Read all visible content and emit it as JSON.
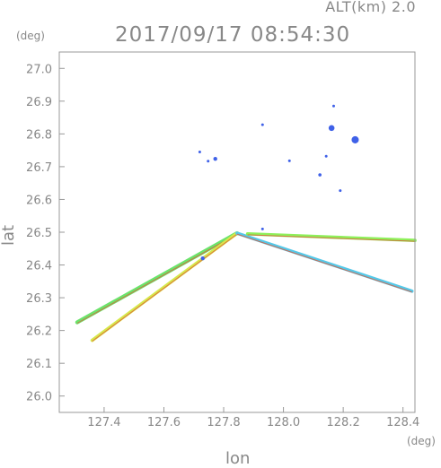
{
  "header": {
    "alt_label": "ALT(km)  2.0",
    "timestamp": "2017/09/17 08:54:30"
  },
  "chart_data": {
    "type": "scatter",
    "title": "2017/09/17 08:54:30",
    "subtitle": "ALT(km)  2.0",
    "xlabel": "lon",
    "ylabel": "lat",
    "x_unit": "(deg)",
    "y_unit": "(deg)",
    "xlim": [
      127.25,
      128.44
    ],
    "ylim": [
      25.95,
      27.05
    ],
    "x_ticks": [
      127.4,
      127.6,
      127.8,
      128.0,
      128.2,
      128.4
    ],
    "x_tick_labels": [
      "127.4",
      "127.6",
      "127.8",
      "128.0",
      "128.2",
      "128.4"
    ],
    "y_ticks": [
      26.0,
      26.1,
      26.2,
      26.3,
      26.4,
      26.5,
      26.6,
      26.7,
      26.8,
      26.9,
      27.0
    ],
    "y_tick_labels": [
      "26.0",
      "26.1",
      "26.2",
      "26.3",
      "26.4",
      "26.5",
      "26.6",
      "26.7",
      "26.8",
      "26.9",
      "27.0"
    ],
    "grid": false,
    "echo_beams": [
      {
        "from": [
          127.845,
          26.497
        ],
        "to": [
          127.31,
          26.225
        ],
        "color": "#6be36b",
        "width": 0.012
      },
      {
        "from": [
          127.845,
          26.497
        ],
        "to": [
          127.36,
          26.17
        ],
        "color": "#d6e84a",
        "width": 0.01
      },
      {
        "from": [
          127.845,
          26.497
        ],
        "to": [
          128.43,
          26.32
        ],
        "color": "#55c8e8",
        "width": 0.01
      },
      {
        "from": [
          127.88,
          26.495
        ],
        "to": [
          128.44,
          26.475
        ],
        "color": "#8ef05a",
        "width": 0.01
      }
    ],
    "echo_cells": [
      {
        "lon": 127.772,
        "lat": 26.724,
        "size": 0.006,
        "color": "#3f61e8"
      },
      {
        "lon": 127.748,
        "lat": 26.717,
        "size": 0.004,
        "color": "#3f61e8"
      },
      {
        "lon": 127.72,
        "lat": 26.745,
        "size": 0.003,
        "color": "#3f61e8"
      },
      {
        "lon": 127.93,
        "lat": 26.828,
        "size": 0.003,
        "color": "#3f61e8"
      },
      {
        "lon": 128.02,
        "lat": 26.718,
        "size": 0.002,
        "color": "#3f61e8"
      },
      {
        "lon": 128.161,
        "lat": 26.818,
        "size": 0.009,
        "color": "#3f61e8"
      },
      {
        "lon": 128.24,
        "lat": 26.782,
        "size": 0.011,
        "color": "#3f61e8"
      },
      {
        "lon": 128.143,
        "lat": 26.732,
        "size": 0.004,
        "color": "#3f61e8"
      },
      {
        "lon": 128.122,
        "lat": 26.675,
        "size": 0.005,
        "color": "#3f61e8"
      },
      {
        "lon": 128.19,
        "lat": 26.627,
        "size": 0.004,
        "color": "#3f61e8"
      },
      {
        "lon": 127.93,
        "lat": 26.51,
        "size": 0.003,
        "color": "#3f61e8"
      },
      {
        "lon": 127.73,
        "lat": 26.42,
        "size": 0.006,
        "color": "#3f61e8"
      },
      {
        "lon": 128.168,
        "lat": 26.885,
        "size": 0.002,
        "color": "#3f61e8"
      }
    ]
  }
}
